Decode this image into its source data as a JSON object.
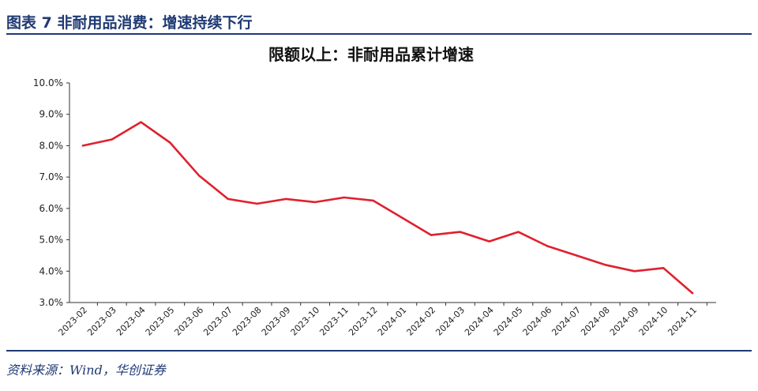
{
  "header": {
    "figure_title": "图表 7   非耐用品消费：增速持续下行"
  },
  "footer": {
    "source": "资料来源：Wind，华创证券"
  },
  "colors": {
    "accent": "#1f3a73",
    "line": "#e0202e",
    "axis": "#333333"
  },
  "chart_data": {
    "type": "line",
    "title": "限额以上：非耐用品累计增速",
    "xlabel": "",
    "ylabel": "",
    "ylim": [
      3.0,
      10.0
    ],
    "yticks": [
      "10.0%",
      "9.0%",
      "8.0%",
      "7.0%",
      "6.0%",
      "5.0%",
      "4.0%",
      "3.0%"
    ],
    "ytick_values": [
      10.0,
      9.0,
      8.0,
      7.0,
      6.0,
      5.0,
      4.0,
      3.0
    ],
    "grid": false,
    "x": [
      "2023-02",
      "2023-03",
      "2023-04",
      "2023-05",
      "2023-06",
      "2023-07",
      "2023-08",
      "2023-09",
      "2023-10",
      "2023-11",
      "2023-12",
      "2024-01",
      "2024-02",
      "2024-03",
      "2024-04",
      "2024-05",
      "2024-06",
      "2024-07",
      "2024-08",
      "2024-09",
      "2024-10",
      "2024-11"
    ],
    "series": [
      {
        "values": [
          8.0,
          8.2,
          8.75,
          8.1,
          7.05,
          6.3,
          6.15,
          6.3,
          6.2,
          6.35,
          6.25,
          5.7,
          5.15,
          5.25,
          4.95,
          5.25,
          4.8,
          4.5,
          4.2,
          4.0,
          4.1,
          3.3
        ]
      }
    ]
  }
}
